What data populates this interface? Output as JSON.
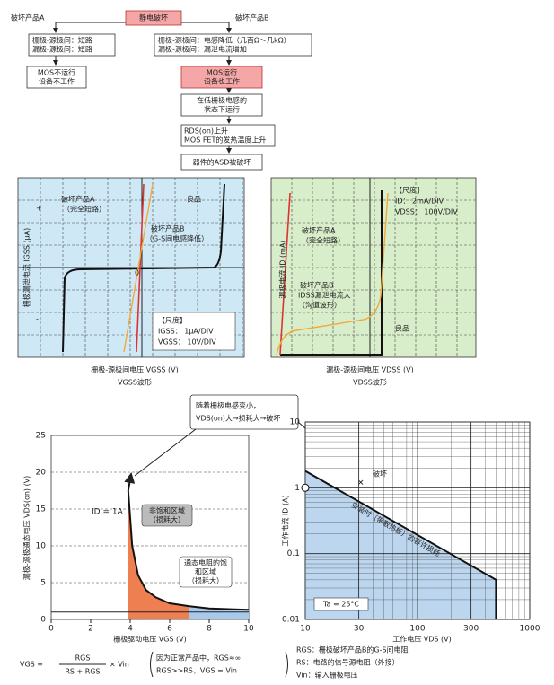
{
  "flow": {
    "start": "静电破坏",
    "branch_a": "破坏产品A",
    "branch_b": "破坏产品B",
    "a_state": [
      "栅极-源极间：短路",
      "漏极-源极间：短路"
    ],
    "a_result": [
      "MOS不运行",
      "设备不工作"
    ],
    "b_state": [
      "栅极-源极间：电感降低（几百Ω～几kΩ）",
      "漏极-源极间：漏泄电流增加"
    ],
    "b_step1": [
      "MOS运行",
      "设备也工作"
    ],
    "b_step2": [
      "在低栅极电感的",
      "状态下运行"
    ],
    "b_step3": [
      "RDS(on)上升",
      "MOS FET的发热温度上升"
    ],
    "b_step4": "器件的ASD被破坏"
  },
  "gate_chart": {
    "y_label": "栅极漏泄电流  IGSS  (μA)",
    "x_label": "栅极-源极间电压  VGSS  (V)",
    "caption": "VGSS波形",
    "plus": "+",
    "minus": "-",
    "origin": "0",
    "label_a": [
      "破坏产品A",
      "（完全短路）"
    ],
    "label_b": [
      "破坏产品B",
      "（G-S间电感降低）"
    ],
    "label_good": "良品",
    "scale": [
      "【尺度】",
      "IGSS：  1μA/DIV",
      "VGSS：  10V/DIV"
    ]
  },
  "drain_chart": {
    "y_label": "漏极电流  ID  (mA)",
    "x_label": "漏极-源极间电压  VDSS  (V)",
    "caption": "VDSS波形",
    "label_a": [
      "破坏产品A",
      "（完全短路）"
    ],
    "label_b": [
      "破坏产品B",
      "IDSS漏泄电流大",
      "（沟道波形）"
    ],
    "label_good": "良品",
    "scale": [
      "【尺度】",
      "ID：  2mA/DIV",
      "VDSS：  100V/DIV"
    ]
  },
  "vds_chart": {
    "y_label": "漏极-源极通态电压  VDS(on)  (V)",
    "x_label": "栅极驱动电压  VGS  (V)",
    "yticks": [
      0,
      5,
      10,
      15,
      20,
      25
    ],
    "xticks": [
      0,
      2,
      4,
      6,
      8,
      10
    ],
    "ylim": [
      0,
      25
    ],
    "xlim": [
      0,
      10
    ],
    "id_label": "ID = 1A",
    "region_a": [
      "非饱和区域",
      "（损耗大）"
    ],
    "region_b": [
      "通态电阻的饱",
      "和区域",
      "（损耗大）"
    ]
  },
  "callout": [
    "随着栅极电感变小，",
    "VDS(on)大→损耗大→破坏"
  ],
  "soa_chart": {
    "y_label": "工作电流  ID  (A)",
    "x_label": "工作电压  VDS  (V)",
    "xticks": [
      10,
      30,
      100,
      300,
      1000
    ],
    "yticks": [
      0.01,
      0.1,
      1,
      10
    ],
    "xlim": [
      10,
      1000
    ],
    "ylim": [
      0.01,
      10
    ],
    "break_label": "破坏",
    "line_label": "安装时（带散热板）的容许损耗",
    "temp": "Ta = 25°C"
  },
  "formula": {
    "lhs": "VGS =",
    "num": "RGS",
    "den": "RS + RGS",
    "tail": "× Vin",
    "note": [
      "因为正常产品中，RGS≈∞",
      "RGS>>RS，VGS = Vin"
    ]
  },
  "notes": [
    "RGS：栅极破坏产品B的G-S间电阻",
    "RS：电路的信号源电阻（外接）",
    "Vin：输入栅极电压"
  ]
}
